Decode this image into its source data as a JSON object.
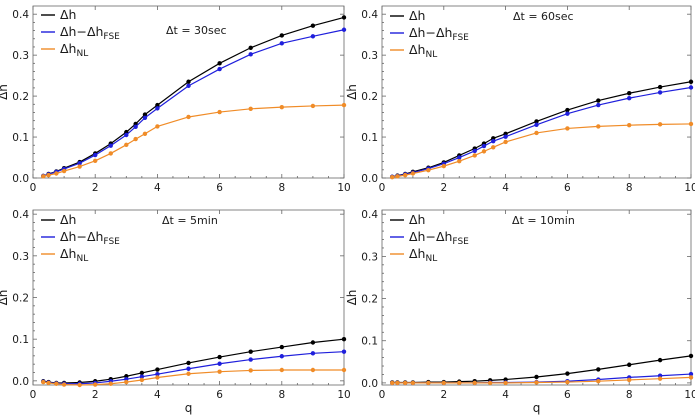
{
  "chart_data": [
    {
      "type": "line",
      "annotation": "Δt = 30sec",
      "xlabel": "",
      "ylabel": "Δh",
      "xlim": [
        0,
        10
      ],
      "ylim": [
        0,
        0.42
      ],
      "xticks": [
        0,
        2,
        4,
        6,
        8,
        10
      ],
      "yticks": [
        0.0,
        0.1,
        0.2,
        0.3,
        0.4
      ],
      "tick_labels_x": [
        "0",
        "2",
        "4",
        "6",
        "8",
        "10"
      ],
      "tick_labels_y": [
        "0.0",
        "0.1",
        "0.2",
        "0.3",
        "0.4"
      ],
      "x": [
        0.33,
        0.5,
        0.75,
        1,
        1.5,
        2,
        2.5,
        3,
        3.3,
        3.6,
        4,
        5,
        6,
        7,
        8,
        9,
        10
      ],
      "series": [
        {
          "name": "Δh",
          "legend_main": "Δh",
          "color": "#000000",
          "values": [
            0.005,
            0.01,
            0.016,
            0.024,
            0.039,
            0.06,
            0.084,
            0.112,
            0.132,
            0.155,
            0.178,
            0.235,
            0.28,
            0.318,
            0.348,
            0.372,
            0.392
          ]
        },
        {
          "name": "Δh−Δh_FSE",
          "legend_main": "Δh−Δh",
          "legend_sub": "FSE",
          "color": "#1f1fdc",
          "values": [
            0.005,
            0.009,
            0.015,
            0.022,
            0.036,
            0.056,
            0.079,
            0.105,
            0.125,
            0.147,
            0.17,
            0.225,
            0.266,
            0.302,
            0.329,
            0.346,
            0.362
          ]
        },
        {
          "name": "Δh_NL",
          "legend_main": "Δh",
          "legend_sub": "NL",
          "color": "#f08c28",
          "values": [
            0.004,
            0.007,
            0.011,
            0.017,
            0.028,
            0.042,
            0.06,
            0.081,
            0.095,
            0.108,
            0.126,
            0.149,
            0.161,
            0.169,
            0.173,
            0.176,
            0.178
          ]
        }
      ]
    },
    {
      "type": "line",
      "annotation": "Δt = 60sec",
      "xlabel": "",
      "ylabel": "Δh",
      "xlim": [
        0,
        10
      ],
      "ylim": [
        0,
        0.42
      ],
      "xticks": [
        0,
        2,
        4,
        6,
        8,
        10
      ],
      "yticks": [
        0.0,
        0.1,
        0.2,
        0.3,
        0.4
      ],
      "tick_labels_x": [
        "0",
        "2",
        "4",
        "6",
        "8",
        "10"
      ],
      "tick_labels_y": [
        "0.0",
        "0.1",
        "0.2",
        "0.3",
        "0.4"
      ],
      "x": [
        0.33,
        0.5,
        0.75,
        1,
        1.5,
        2,
        2.5,
        3,
        3.3,
        3.6,
        4,
        5,
        6,
        7,
        8,
        9,
        10
      ],
      "series": [
        {
          "name": "Δh",
          "legend_main": "Δh",
          "color": "#000000",
          "values": [
            0.003,
            0.006,
            0.01,
            0.015,
            0.025,
            0.038,
            0.055,
            0.072,
            0.084,
            0.097,
            0.108,
            0.138,
            0.166,
            0.189,
            0.207,
            0.222,
            0.235
          ]
        },
        {
          "name": "Δh−Δh_FSE",
          "legend_main": "Δh−Δh",
          "legend_sub": "FSE",
          "color": "#1f1fdc",
          "values": [
            0.003,
            0.005,
            0.009,
            0.013,
            0.023,
            0.035,
            0.05,
            0.066,
            0.078,
            0.09,
            0.101,
            0.13,
            0.157,
            0.178,
            0.195,
            0.209,
            0.221
          ]
        },
        {
          "name": "Δh_NL",
          "legend_main": "Δh",
          "legend_sub": "NL",
          "color": "#f08c28",
          "values": [
            0.002,
            0.004,
            0.007,
            0.011,
            0.019,
            0.029,
            0.041,
            0.055,
            0.065,
            0.075,
            0.088,
            0.11,
            0.121,
            0.126,
            0.129,
            0.131,
            0.132
          ]
        }
      ]
    },
    {
      "type": "line",
      "annotation": "Δt = 5min",
      "xlabel": "q",
      "ylabel": "Δh",
      "xlim": [
        0,
        10
      ],
      "ylim": [
        -0.01,
        0.41
      ],
      "xticks": [
        0,
        2,
        4,
        6,
        8,
        10
      ],
      "yticks": [
        0.0,
        0.1,
        0.2,
        0.3,
        0.4
      ],
      "tick_labels_x": [
        "0",
        "2",
        "4",
        "6",
        "8",
        "10"
      ],
      "tick_labels_y": [
        "0.0",
        "0.1",
        "0.2",
        "0.3",
        "0.4"
      ],
      "x": [
        0.33,
        0.5,
        0.75,
        1,
        1.5,
        2,
        2.5,
        3,
        3.5,
        4,
        5,
        6,
        7,
        8,
        9,
        10
      ],
      "series": [
        {
          "name": "Δh",
          "legend_main": "Δh",
          "color": "#000000",
          "values": [
            -0.001,
            -0.003,
            -0.005,
            -0.005,
            -0.004,
            -0.001,
            0.004,
            0.011,
            0.019,
            0.027,
            0.043,
            0.057,
            0.07,
            0.081,
            0.092,
            0.1
          ]
        },
        {
          "name": "Δh−Δh_FSE",
          "legend_main": "Δh−Δh",
          "legend_sub": "FSE",
          "color": "#1f1fdc",
          "values": [
            -0.002,
            -0.004,
            -0.006,
            -0.007,
            -0.007,
            -0.005,
            -0.001,
            0.004,
            0.01,
            0.016,
            0.029,
            0.041,
            0.051,
            0.059,
            0.066,
            0.07
          ]
        },
        {
          "name": "Δh_NL",
          "legend_main": "Δh",
          "legend_sub": "NL",
          "color": "#f08c28",
          "values": [
            -0.003,
            -0.005,
            -0.007,
            -0.009,
            -0.01,
            -0.009,
            -0.007,
            -0.003,
            0.002,
            0.008,
            0.017,
            0.022,
            0.025,
            0.026,
            0.026,
            0.026
          ]
        }
      ]
    },
    {
      "type": "line",
      "annotation": "Δt = 10min",
      "xlabel": "q",
      "ylabel": "Δh",
      "xlim": [
        0,
        10
      ],
      "ylim": [
        -0.005,
        0.41
      ],
      "xticks": [
        0,
        2,
        4,
        6,
        8,
        10
      ],
      "yticks": [
        0.0,
        0.1,
        0.2,
        0.3,
        0.4
      ],
      "tick_labels_x": [
        "0",
        "2",
        "4",
        "6",
        "8",
        "10"
      ],
      "tick_labels_y": [
        "0.0",
        "0.1",
        "0.2",
        "0.3",
        "0.4"
      ],
      "x": [
        0.33,
        0.5,
        0.75,
        1,
        1.5,
        2,
        2.5,
        3,
        3.5,
        4,
        5,
        6,
        7,
        8,
        9,
        10
      ],
      "series": [
        {
          "name": "Δh",
          "legend_main": "Δh",
          "color": "#000000",
          "values": [
            0.001,
            0.001,
            0.001,
            0.001,
            0.002,
            0.002,
            0.003,
            0.004,
            0.006,
            0.008,
            0.014,
            0.022,
            0.032,
            0.043,
            0.054,
            0.064
          ]
        },
        {
          "name": "Δh−Δh_FSE",
          "legend_main": "Δh−Δh",
          "legend_sub": "FSE",
          "color": "#1f1fdc",
          "values": [
            0,
            0,
            0,
            0,
            0,
            0,
            0,
            0,
            0.001,
            0.001,
            0.002,
            0.004,
            0.008,
            0.013,
            0.017,
            0.021
          ]
        },
        {
          "name": "Δh_NL",
          "legend_main": "Δh",
          "legend_sub": "NL",
          "color": "#f08c28",
          "values": [
            0,
            0,
            0,
            0,
            0,
            0,
            0,
            0,
            0,
            0,
            0.001,
            0.002,
            0.004,
            0.007,
            0.01,
            0.013
          ]
        }
      ]
    }
  ]
}
